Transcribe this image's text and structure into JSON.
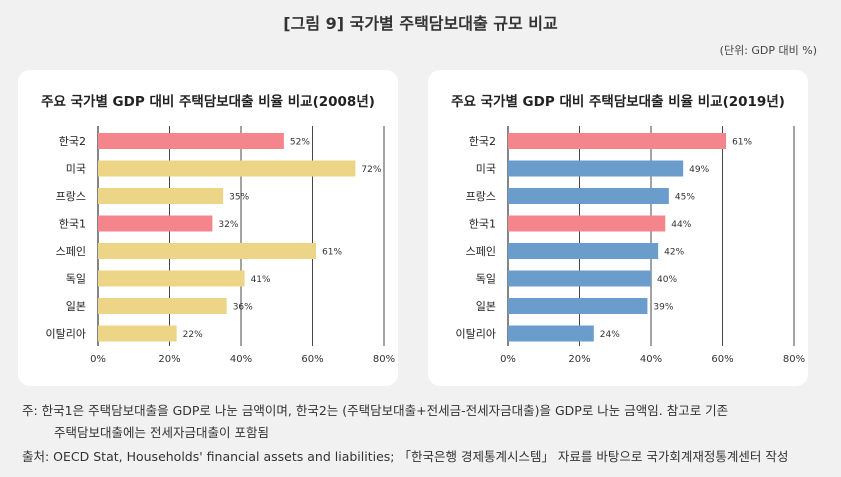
{
  "figure_title": "[그림 9] 국가별 주택담보대출 규모 비교",
  "unit_label": "(단위: GDP 대비 %)",
  "notes": {
    "line1": "주: 한국1은 주택담보대출을 GDP로 나눈 금액이며, 한국2는 (주택담보대출+전세금-전세자금대출)을 GDP로 나눈 금액임. 참고로 기존",
    "line2": "주택담보대출에는 전세자금대출이 포함됨",
    "source": "출처: OECD Stat, Households' financial assets and liabilities; 「한국은행 경제통계시스템」 자료를 바탕으로 국가회계재정통계센터 작성"
  },
  "colors": {
    "korea": "#f4858c",
    "other_2008": "#ecd586",
    "other_2019": "#6b9dcc",
    "grid": "#333333"
  },
  "chart_data": [
    {
      "type": "bar",
      "orientation": "horizontal",
      "title": "주요 국가별 GDP 대비 주택담보대출 비율 비교(2008년)",
      "categories": [
        "한국2",
        "미국",
        "프랑스",
        "한국1",
        "스페인",
        "독일",
        "일본",
        "이탈리아"
      ],
      "values": [
        52,
        72,
        35,
        32,
        61,
        41,
        36,
        22
      ],
      "value_labels": [
        "52%",
        "72%",
        "35%",
        "32%",
        "61%",
        "41%",
        "36%",
        "22%"
      ],
      "highlight": [
        true,
        false,
        false,
        true,
        false,
        false,
        false,
        false
      ],
      "xlim": [
        0,
        80
      ],
      "xticks": [
        0,
        20,
        40,
        60,
        80
      ],
      "xtick_labels": [
        "0%",
        "20%",
        "40%",
        "60%",
        "80%"
      ],
      "grid": true
    },
    {
      "type": "bar",
      "orientation": "horizontal",
      "title": "주요 국가별 GDP 대비 주택담보대출 비율 비교(2019년)",
      "categories": [
        "한국2",
        "미국",
        "프랑스",
        "한국1",
        "스페인",
        "독일",
        "일본",
        "이탈리아"
      ],
      "values": [
        61,
        49,
        45,
        44,
        42,
        40,
        39,
        24
      ],
      "value_labels": [
        "61%",
        "49%",
        "45%",
        "44%",
        "42%",
        "40%",
        "39%",
        "24%"
      ],
      "highlight": [
        true,
        false,
        false,
        true,
        false,
        false,
        false,
        false
      ],
      "xlim": [
        0,
        80
      ],
      "xticks": [
        0,
        20,
        40,
        60,
        80
      ],
      "xtick_labels": [
        "0%",
        "20%",
        "40%",
        "60%",
        "80%"
      ],
      "grid": true
    }
  ]
}
